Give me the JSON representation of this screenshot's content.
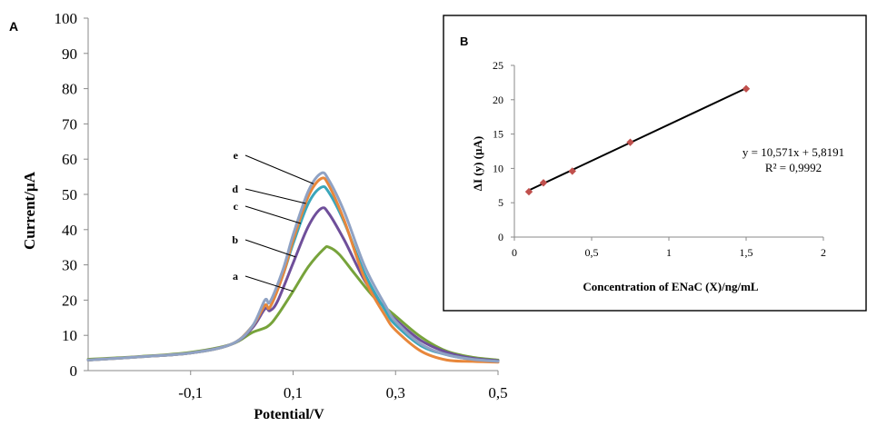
{
  "chart_data": [
    {
      "type": "line",
      "panel_label": "A",
      "xlabel": "Potential/V",
      "ylabel": "Current/µA",
      "xlim": [
        -0.3,
        0.5
      ],
      "ylim": [
        0,
        100
      ],
      "x_ticks": [
        -0.1,
        0.1,
        0.3,
        0.5
      ],
      "x_tick_labels": [
        "-0,1",
        "0,1",
        "0,3",
        "0,5"
      ],
      "y_ticks": [
        0,
        10,
        20,
        30,
        40,
        50,
        60,
        70,
        80,
        90,
        100
      ],
      "y_tick_labels": [
        "0",
        "10",
        "20",
        "30",
        "40",
        "50",
        "60",
        "70",
        "80",
        "90",
        "100"
      ],
      "grid": false,
      "series": [
        {
          "name": "a",
          "color": "#77a33b",
          "x": [
            -0.3,
            -0.2,
            -0.1,
            -0.02,
            0.02,
            0.05,
            0.07,
            0.1,
            0.13,
            0.16,
            0.17,
            0.19,
            0.22,
            0.26,
            0.3,
            0.35,
            0.4,
            0.45,
            0.5
          ],
          "y": [
            3.2,
            4.0,
            5.2,
            7.5,
            10.8,
            12.5,
            15.8,
            22.5,
            29.5,
            34.5,
            35.0,
            33.0,
            27.5,
            20.5,
            15.5,
            9.5,
            5.5,
            3.8,
            3.0
          ]
        },
        {
          "name": "b",
          "color": "#6f4f9a",
          "x": [
            -0.3,
            -0.2,
            -0.1,
            -0.02,
            0.02,
            0.045,
            0.055,
            0.07,
            0.1,
            0.13,
            0.155,
            0.17,
            0.2,
            0.24,
            0.28,
            0.3,
            0.35,
            0.4,
            0.45,
            0.5
          ],
          "y": [
            3.0,
            3.9,
            5.0,
            7.5,
            12.0,
            17.5,
            17.0,
            19.8,
            30.5,
            41.0,
            46.0,
            44.5,
            37.0,
            25.5,
            17.5,
            14.5,
            8.5,
            5.2,
            3.5,
            2.8
          ]
        },
        {
          "name": "c",
          "color": "#3aa6bb",
          "x": [
            -0.3,
            -0.2,
            -0.1,
            -0.02,
            0.02,
            0.045,
            0.055,
            0.08,
            0.1,
            0.13,
            0.155,
            0.17,
            0.2,
            0.24,
            0.28,
            0.3,
            0.35,
            0.4,
            0.45,
            0.5
          ],
          "y": [
            3.0,
            3.9,
            5.0,
            7.5,
            12.5,
            18.5,
            18.0,
            27.0,
            36.0,
            47.5,
            52.0,
            50.5,
            42.0,
            27.5,
            17.0,
            13.0,
            7.0,
            4.5,
            3.2,
            2.6
          ]
        },
        {
          "name": "d",
          "color": "#e8873b",
          "x": [
            -0.3,
            -0.2,
            -0.1,
            -0.02,
            0.02,
            0.045,
            0.055,
            0.08,
            0.1,
            0.13,
            0.155,
            0.17,
            0.2,
            0.24,
            0.28,
            0.3,
            0.35,
            0.4,
            0.45,
            0.5
          ],
          "y": [
            3.0,
            3.9,
            5.0,
            7.5,
            12.5,
            18.5,
            18.0,
            27.0,
            37.0,
            49.5,
            54.5,
            52.5,
            42.5,
            26.0,
            15.5,
            11.5,
            5.5,
            3.0,
            2.6,
            2.4
          ]
        },
        {
          "name": "e",
          "color": "#8fa2c4",
          "x": [
            -0.3,
            -0.2,
            -0.1,
            -0.02,
            0.02,
            0.045,
            0.055,
            0.08,
            0.1,
            0.13,
            0.155,
            0.17,
            0.2,
            0.24,
            0.28,
            0.3,
            0.35,
            0.4,
            0.45,
            0.5
          ],
          "y": [
            3.0,
            3.9,
            5.0,
            7.5,
            12.5,
            20.0,
            19.5,
            28.5,
            38.5,
            51.0,
            56.0,
            54.0,
            45.0,
            29.5,
            18.5,
            14.0,
            7.5,
            4.5,
            3.2,
            2.6
          ]
        }
      ],
      "annotations": [
        "a",
        "b",
        "c",
        "d",
        "e"
      ]
    },
    {
      "type": "scatter",
      "panel_label": "B",
      "xlabel": "Concentration  of ENaC  (X)/ng/mL",
      "ylabel": "ΔI (y) (µA)",
      "xlim": [
        0,
        2
      ],
      "ylim": [
        0,
        25
      ],
      "x_ticks": [
        0,
        0.5,
        1,
        1.5,
        2
      ],
      "x_tick_labels": [
        "0",
        "0,5",
        "1",
        "1,5",
        "2"
      ],
      "y_ticks": [
        0,
        5,
        10,
        15,
        20,
        25
      ],
      "y_tick_labels": [
        "0",
        "5",
        "10",
        "15",
        "20",
        "25"
      ],
      "grid": false,
      "points": {
        "x": [
          0.094,
          0.188,
          0.375,
          0.75,
          1.5
        ],
        "y": [
          6.6,
          7.9,
          9.6,
          13.8,
          21.6
        ],
        "color": "#c0504d"
      },
      "trendline": {
        "slope": 10.571,
        "intercept": 5.8191,
        "x_range": [
          0.094,
          1.5
        ],
        "color": "#000000"
      },
      "equation": "y = 10,571x + 5,8191",
      "r_squared": "R² = 0,9992"
    }
  ]
}
